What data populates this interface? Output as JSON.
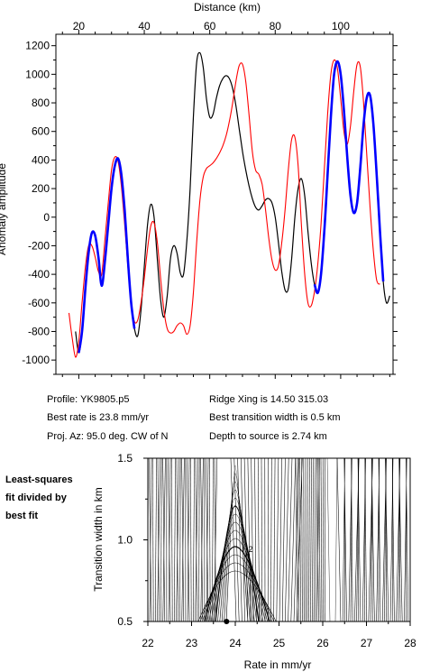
{
  "info": {
    "profile": "Profile: YK9805.p5",
    "ridge": "Ridge Xing is 14.50 315.03",
    "rate": "Best rate is 23.8 mm/yr",
    "width": "Best transition width is 0.5 km",
    "az": "Proj. Az: 95.0 deg. CW of N",
    "depth": "Depth to source is   2.74 km"
  },
  "side_label": [
    "Least-squares",
    "fit divided by",
    "best fit"
  ],
  "chart_data": [
    {
      "type": "line",
      "xlabel": "Distance (km)",
      "ylabel": "Anomaly amplitude",
      "xlim": [
        13,
        116
      ],
      "ylim": [
        -1100,
        1280
      ],
      "xticks": [
        20,
        40,
        60,
        80,
        100
      ],
      "yticks": [
        -1000,
        -800,
        -600,
        -400,
        -200,
        0,
        200,
        400,
        600,
        800,
        1000,
        1200
      ],
      "series": [
        {
          "color": "#000000",
          "points": [
            [
              19,
              -800
            ],
            [
              20,
              -950
            ],
            [
              21,
              -800
            ],
            [
              22,
              -500
            ],
            [
              23,
              -250
            ],
            [
              24,
              -110
            ],
            [
              25,
              -130
            ],
            [
              26,
              -280
            ],
            [
              27,
              -480
            ],
            [
              28,
              -300
            ],
            [
              29,
              -50
            ],
            [
              30,
              200
            ],
            [
              31,
              360
            ],
            [
              32,
              410
            ],
            [
              33,
              300
            ],
            [
              34,
              50
            ],
            [
              35,
              -300
            ],
            [
              36,
              -600
            ],
            [
              37,
              -780
            ],
            [
              38,
              -830
            ],
            [
              39,
              -650
            ],
            [
              40,
              -350
            ],
            [
              41,
              -50
            ],
            [
              42,
              90
            ],
            [
              43,
              0
            ],
            [
              44,
              -300
            ],
            [
              45,
              -580
            ],
            [
              46,
              -700
            ],
            [
              47,
              -550
            ],
            [
              48,
              -290
            ],
            [
              49,
              -200
            ],
            [
              50,
              -250
            ],
            [
              51,
              -390
            ],
            [
              52,
              -400
            ],
            [
              53,
              -170
            ],
            [
              54,
              200
            ],
            [
              55,
              700
            ],
            [
              56,
              1080
            ],
            [
              57,
              1150
            ],
            [
              58,
              1050
            ],
            [
              59,
              830
            ],
            [
              60,
              700
            ],
            [
              61,
              720
            ],
            [
              62,
              830
            ],
            [
              63,
              920
            ],
            [
              64,
              970
            ],
            [
              65,
              990
            ],
            [
              66,
              970
            ],
            [
              67,
              900
            ],
            [
              68,
              780
            ],
            [
              69,
              620
            ],
            [
              70,
              460
            ],
            [
              71,
              330
            ],
            [
              72,
              220
            ],
            [
              73,
              130
            ],
            [
              74,
              70
            ],
            [
              75,
              50
            ],
            [
              76,
              80
            ],
            [
              77,
              120
            ],
            [
              78,
              130
            ],
            [
              79,
              100
            ],
            [
              80,
              0
            ],
            [
              81,
              -180
            ],
            [
              82,
              -380
            ],
            [
              83,
              -510
            ],
            [
              84,
              -500
            ],
            [
              85,
              -300
            ],
            [
              86,
              0
            ],
            [
              87,
              200
            ],
            [
              88,
              270
            ],
            [
              89,
              150
            ],
            [
              90,
              -100
            ],
            [
              91,
              -320
            ],
            [
              92,
              -470
            ],
            [
              93,
              -530
            ],
            [
              94,
              -400
            ],
            [
              95,
              -100
            ],
            [
              96,
              300
            ],
            [
              97,
              700
            ],
            [
              98,
              1000
            ],
            [
              99,
              1090
            ],
            [
              100,
              1000
            ],
            [
              101,
              750
            ],
            [
              102,
              420
            ],
            [
              103,
              150
            ],
            [
              104,
              30
            ],
            [
              105,
              100
            ],
            [
              106,
              350
            ],
            [
              107,
              650
            ],
            [
              108,
              840
            ],
            [
              109,
              850
            ],
            [
              110,
              650
            ],
            [
              111,
              300
            ],
            [
              112,
              -100
            ],
            [
              113,
              -450
            ],
            [
              114,
              -600
            ],
            [
              115,
              -550
            ]
          ]
        },
        {
          "color": "#ff0000",
          "points": [
            [
              17,
              -670
            ],
            [
              18,
              -850
            ],
            [
              19,
              -980
            ],
            [
              20,
              -870
            ],
            [
              21,
              -600
            ],
            [
              22,
              -350
            ],
            [
              23,
              -200
            ],
            [
              24,
              -200
            ],
            [
              25,
              -280
            ],
            [
              26,
              -380
            ],
            [
              27,
              -400
            ],
            [
              28,
              -150
            ],
            [
              29,
              100
            ],
            [
              30,
              330
            ],
            [
              31,
              420
            ],
            [
              32,
              390
            ],
            [
              33,
              220
            ],
            [
              34,
              -50
            ],
            [
              35,
              -350
            ],
            [
              36,
              -600
            ],
            [
              37,
              -730
            ],
            [
              38,
              -720
            ],
            [
              39,
              -600
            ],
            [
              40,
              -430
            ],
            [
              41,
              -220
            ],
            [
              42,
              -60
            ],
            [
              43,
              -40
            ],
            [
              44,
              -180
            ],
            [
              45,
              -430
            ],
            [
              46,
              -650
            ],
            [
              47,
              -780
            ],
            [
              48,
              -810
            ],
            [
              49,
              -800
            ],
            [
              50,
              -760
            ],
            [
              51,
              -740
            ],
            [
              52,
              -760
            ],
            [
              53,
              -820
            ],
            [
              54,
              -760
            ],
            [
              55,
              -530
            ],
            [
              56,
              -180
            ],
            [
              57,
              120
            ],
            [
              58,
              280
            ],
            [
              59,
              340
            ],
            [
              60,
              360
            ],
            [
              61,
              380
            ],
            [
              62,
              410
            ],
            [
              63,
              450
            ],
            [
              64,
              500
            ],
            [
              65,
              570
            ],
            [
              66,
              670
            ],
            [
              67,
              800
            ],
            [
              68,
              950
            ],
            [
              69,
              1060
            ],
            [
              70,
              1070
            ],
            [
              71,
              950
            ],
            [
              72,
              720
            ],
            [
              73,
              460
            ],
            [
              74,
              330
            ],
            [
              75,
              300
            ],
            [
              76,
              230
            ],
            [
              77,
              60
            ],
            [
              78,
              -140
            ],
            [
              79,
              -300
            ],
            [
              80,
              -370
            ],
            [
              81,
              -340
            ],
            [
              82,
              -180
            ],
            [
              83,
              50
            ],
            [
              84,
              330
            ],
            [
              85,
              540
            ],
            [
              86,
              560
            ],
            [
              87,
              360
            ],
            [
              88,
              -50
            ],
            [
              89,
              -400
            ],
            [
              90,
              -600
            ],
            [
              91,
              -620
            ],
            [
              92,
              -520
            ],
            [
              93,
              -330
            ],
            [
              94,
              -50
            ],
            [
              95,
              330
            ],
            [
              96,
              720
            ],
            [
              97,
              1000
            ],
            [
              98,
              1100
            ],
            [
              99,
              1040
            ],
            [
              100,
              830
            ],
            [
              101,
              600
            ],
            [
              102,
              510
            ],
            [
              103,
              640
            ],
            [
              104,
              880
            ],
            [
              105,
              1070
            ],
            [
              106,
              1050
            ],
            [
              107,
              800
            ],
            [
              108,
              420
            ],
            [
              109,
              60
            ],
            [
              110,
              -240
            ],
            [
              111,
              -440
            ],
            [
              112,
              -470
            ]
          ]
        },
        {
          "color": "#0000ff",
          "segments": [
            [
              [
                20,
                -950
              ],
              [
                21,
                -800
              ],
              [
                22,
                -500
              ],
              [
                23,
                -250
              ],
              [
                24,
                -110
              ],
              [
                25,
                -130
              ],
              [
                26,
                -280
              ],
              [
                27,
                -480
              ],
              [
                28,
                -300
              ],
              [
                29,
                -50
              ],
              [
                30,
                200
              ],
              [
                31,
                360
              ],
              [
                32,
                410
              ],
              [
                33,
                300
              ],
              [
                34,
                50
              ],
              [
                35,
                -300
              ],
              [
                36,
                -600
              ],
              [
                37,
                -780
              ]
            ],
            [
              [
                92,
                -470
              ],
              [
                93,
                -530
              ],
              [
                94,
                -400
              ],
              [
                95,
                -100
              ],
              [
                96,
                300
              ],
              [
                97,
                700
              ],
              [
                98,
                1000
              ],
              [
                99,
                1090
              ],
              [
                100,
                1000
              ],
              [
                101,
                750
              ],
              [
                102,
                420
              ],
              [
                103,
                150
              ],
              [
                104,
                30
              ],
              [
                105,
                100
              ],
              [
                106,
                350
              ],
              [
                107,
                650
              ],
              [
                108,
                840
              ],
              [
                109,
                850
              ],
              [
                110,
                650
              ],
              [
                111,
                300
              ],
              [
                112,
                -100
              ],
              [
                113,
                -450
              ]
            ]
          ]
        }
      ]
    },
    {
      "type": "contour",
      "xlabel": "Rate in mm/yr",
      "ylabel": "Transition width in km",
      "xlim": [
        22,
        28
      ],
      "ylim": [
        0.5,
        1.5
      ],
      "xticks": [
        22,
        23,
        24,
        25,
        26,
        27,
        28
      ],
      "yticks": [
        0.5,
        1.0,
        1.5
      ],
      "best_fit": {
        "x": 23.8,
        "y": 0.5
      },
      "contour_label": "2"
    }
  ]
}
